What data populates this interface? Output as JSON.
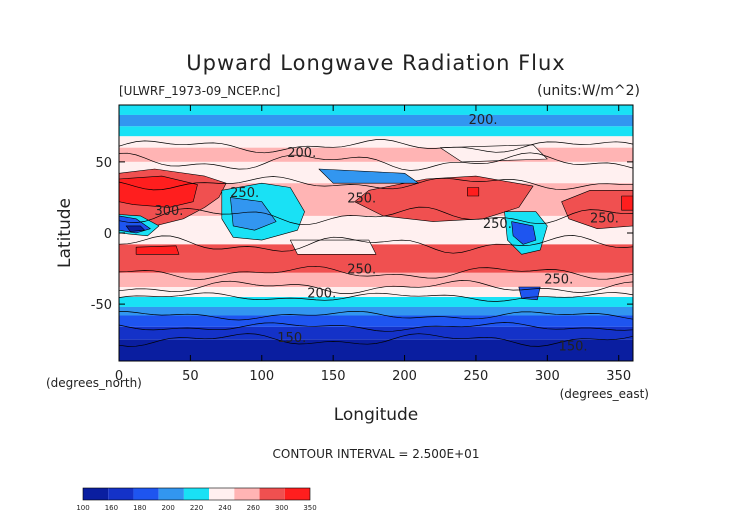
{
  "chart_data": {
    "type": "heatmap",
    "title": "Upward Longwave Radiation Flux",
    "subtitle_left": "[ULWRF_1973-09_NCEP.nc]",
    "subtitle_right": "(units:W/m^2)",
    "xlabel": "Longitude",
    "ylabel": "Latitude",
    "x_unit_label": "(degrees_east)",
    "y_unit_label": "(degrees_north)",
    "xlim": [
      0,
      360
    ],
    "ylim": [
      -90,
      90
    ],
    "x_ticks": [
      0,
      50,
      100,
      150,
      200,
      250,
      300,
      350
    ],
    "y_ticks": [
      -50,
      0,
      50
    ],
    "contour_interval_text": "CONTOUR INTERVAL = 2.500E+01",
    "contour_labels": [
      {
        "text": "200.",
        "lon": 128,
        "lat": 57
      },
      {
        "text": "200.",
        "lon": 255,
        "lat": 80
      },
      {
        "text": "250.",
        "lon": 88,
        "lat": 29
      },
      {
        "text": "250.",
        "lon": 170,
        "lat": 25
      },
      {
        "text": "250.",
        "lon": 265,
        "lat": 7
      },
      {
        "text": "250.",
        "lon": 340,
        "lat": 11
      },
      {
        "text": "300.",
        "lon": 35,
        "lat": 16
      },
      {
        "text": "250.",
        "lon": 170,
        "lat": -25
      },
      {
        "text": "250.",
        "lon": 308,
        "lat": -32
      },
      {
        "text": "200.",
        "lon": 142,
        "lat": -42
      },
      {
        "text": "150.",
        "lon": 121,
        "lat": -73
      },
      {
        "text": "150.",
        "lon": 318,
        "lat": -79
      }
    ],
    "colorbar": {
      "levels": [
        "100",
        "160",
        "180",
        "200",
        "220",
        "240",
        "260",
        "300",
        "350"
      ],
      "colors": [
        "#0a1ea0",
        "#1432c8",
        "#1e55f0",
        "#3296f0",
        "#19e1f5",
        "#fff0f0",
        "#ffb4b4",
        "#f05050",
        "#ff1e1e"
      ]
    }
  }
}
